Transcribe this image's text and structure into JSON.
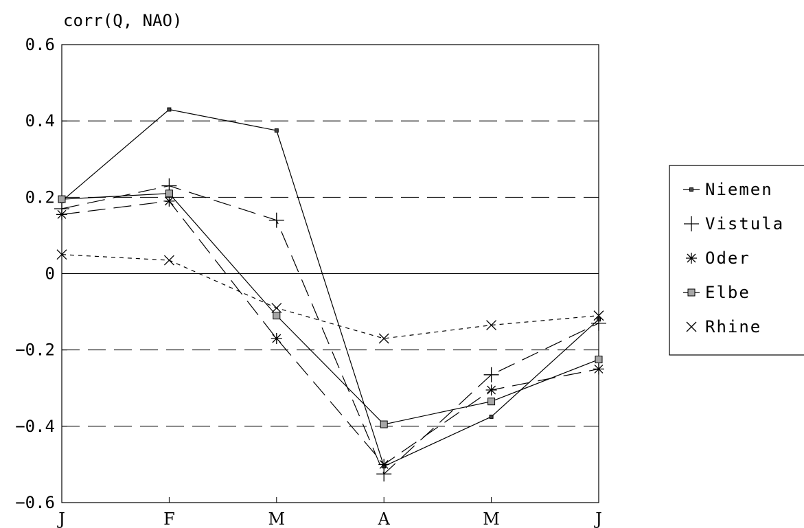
{
  "chart_data": {
    "type": "line",
    "title": "corr(Q, NAO)",
    "xlabel": "",
    "ylabel": "",
    "categories": [
      "J",
      "F",
      "M",
      "A",
      "M",
      "J"
    ],
    "ylim": [
      -0.6,
      0.6
    ],
    "yticks": [
      0.6,
      0.4,
      0.2,
      0,
      -0.2,
      -0.4,
      -0.6
    ],
    "ytick_labels": [
      "0.6",
      "0.4",
      "0.2",
      "0",
      "−0.2",
      "−0.4",
      "−0.6"
    ],
    "reference_lines": [
      {
        "y": 0.4,
        "style": "long-dash"
      },
      {
        "y": 0.2,
        "style": "long-dash"
      },
      {
        "y": 0,
        "style": "solid"
      },
      {
        "y": -0.2,
        "style": "long-dash"
      },
      {
        "y": -0.4,
        "style": "long-dash"
      }
    ],
    "legend_position": "right",
    "series": [
      {
        "name": "Niemen",
        "marker": "small-square",
        "line": "solid",
        "values": [
          0.19,
          0.43,
          0.375,
          -0.505,
          -0.375,
          -0.12
        ]
      },
      {
        "name": "Vistula",
        "marker": "plus",
        "line": "long-dash",
        "values": [
          0.17,
          0.23,
          0.14,
          -0.525,
          -0.265,
          -0.13
        ]
      },
      {
        "name": "Oder",
        "marker": "asterisk",
        "line": "long-dash",
        "values": [
          0.155,
          0.19,
          -0.17,
          -0.5,
          -0.305,
          -0.25
        ]
      },
      {
        "name": "Elbe",
        "marker": "gray-square",
        "line": "solid",
        "values": [
          0.195,
          0.21,
          -0.11,
          -0.395,
          -0.335,
          -0.225
        ]
      },
      {
        "name": "Rhine",
        "marker": "cross",
        "line": "short-dash",
        "values": [
          0.05,
          0.035,
          -0.09,
          -0.17,
          -0.135,
          -0.11
        ]
      }
    ]
  }
}
